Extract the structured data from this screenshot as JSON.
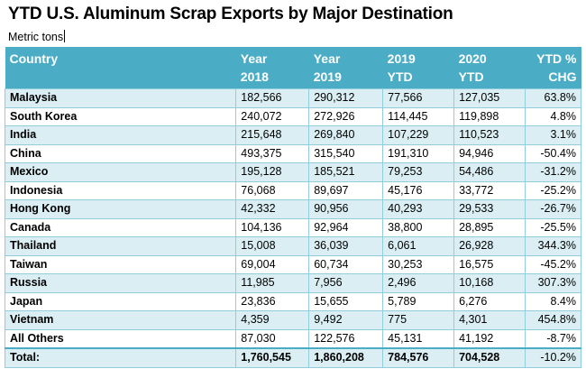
{
  "title": "YTD U.S. Aluminum Scrap Exports by Major Destination",
  "subtitle": "Metric tons",
  "colors": {
    "header": "#4BACC6",
    "band": "#DAEEF3",
    "border": "#92CDDC"
  },
  "headers": [
    [
      "Country",
      ""
    ],
    [
      "Year",
      "2018"
    ],
    [
      "Year",
      "2019"
    ],
    [
      "2019",
      "YTD"
    ],
    [
      "2020",
      "YTD"
    ],
    [
      "YTD %",
      "CHG"
    ]
  ],
  "rows": [
    [
      "Malaysia",
      "182,566",
      "290,312",
      "77,566",
      "127,035",
      "63.8%"
    ],
    [
      "South Korea",
      "240,072",
      "272,926",
      "114,445",
      "119,898",
      "4.8%"
    ],
    [
      "India",
      "215,648",
      "269,840",
      "107,229",
      "110,523",
      "3.1%"
    ],
    [
      "China",
      "493,375",
      "315,540",
      "191,310",
      "94,946",
      "-50.4%"
    ],
    [
      "Mexico",
      "195,128",
      "185,521",
      "79,253",
      "54,486",
      "-31.2%"
    ],
    [
      "Indonesia",
      "76,068",
      "89,697",
      "45,176",
      "33,772",
      "-25.2%"
    ],
    [
      "Hong Kong",
      "42,332",
      "90,956",
      "40,293",
      "29,533",
      "-26.7%"
    ],
    [
      "Canada",
      "104,136",
      "92,964",
      "38,800",
      "28,895",
      "-25.5%"
    ],
    [
      "Thailand",
      "15,008",
      "36,039",
      "6,061",
      "26,928",
      "344.3%"
    ],
    [
      "Taiwan",
      "69,004",
      "60,734",
      "30,253",
      "16,575",
      "-45.2%"
    ],
    [
      "Russia",
      "11,985",
      "7,956",
      "2,496",
      "10,168",
      "307.3%"
    ],
    [
      "Japan",
      "23,836",
      "15,655",
      "5,789",
      "6,276",
      "8.4%"
    ],
    [
      "Vietnam",
      "4,359",
      "9,492",
      "775",
      "4,301",
      "454.8%"
    ],
    [
      "All Others",
      "87,030",
      "122,576",
      "45,131",
      "41,192",
      "-8.7%"
    ]
  ],
  "total": [
    "Total:",
    "1,760,545",
    "1,860,208",
    "784,576",
    "704,528",
    "-10.2%"
  ]
}
